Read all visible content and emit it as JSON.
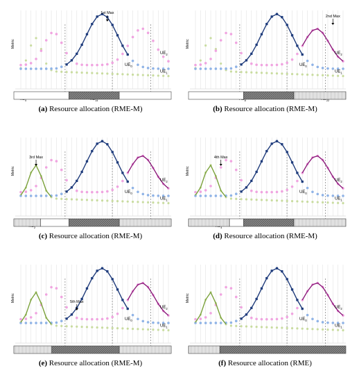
{
  "metric_label": "Metric",
  "colors": {
    "ue0": "#1f3b7a",
    "ue0_faint": "#8fb3e6",
    "ue1": "#c9dca0",
    "ue1_strong": "#7aa13a",
    "ue2": "#8b1a7a",
    "ue2_faint": "#f0a4e0",
    "bar_gray": "#7a7a7a",
    "bar_light": "#c8c8c8"
  },
  "panels": [
    {
      "caption_letter": "(a)",
      "caption_text": " Resource allocation (RME-M)",
      "annotation": "1st Max",
      "labels": {
        "ue2": "UE",
        "ue2_sub": "2",
        "ue0": "UE",
        "ue0_sub": "0",
        "ue1": "UE",
        "ue1_sub": "1"
      },
      "rb_labels": [
        {
          "text": "RB",
          "sub": "0"
        },
        {
          "text": "RB",
          "sub": "14"
        }
      ],
      "bar_segments": [
        {
          "from": 0.0,
          "to": 0.35,
          "fill": "white"
        },
        {
          "from": 0.35,
          "to": 0.67,
          "fill": "gray"
        },
        {
          "from": 0.67,
          "to": 1.0,
          "fill": "white"
        }
      ]
    },
    {
      "caption_letter": "(b)",
      "caption_text": " Resource allocation (RME-M)",
      "annotation": "2nd Max",
      "labels": {
        "ue2": "UE",
        "ue2_sub": "2",
        "ue0": "UE",
        "ue0_sub": "0",
        "ue1": "UE",
        "ue1_sub": "1"
      },
      "rb_labels": [
        {
          "text": "RB",
          "sub": "8"
        },
        {
          "text": "RB",
          "sub": "22"
        }
      ],
      "bar_segments": [
        {
          "from": 0.0,
          "to": 0.35,
          "fill": "white"
        },
        {
          "from": 0.35,
          "to": 0.67,
          "fill": "gray"
        },
        {
          "from": 0.67,
          "to": 1.0,
          "fill": "light"
        }
      ]
    },
    {
      "caption_letter": "(c)",
      "caption_text": " Resource allocation (RME-M)",
      "annotation": "3rd Max",
      "labels": {
        "ue2": "UE",
        "ue2_sub": "2",
        "ue0": "UE",
        "ue0_sub": "0",
        "ue1": "UE",
        "ue1_sub": "1"
      },
      "rb_labels": [
        {
          "text": "RB",
          "sub": "2"
        }
      ],
      "bar_segments": [
        {
          "from": 0.0,
          "to": 0.17,
          "fill": "light"
        },
        {
          "from": 0.17,
          "to": 0.35,
          "fill": "white"
        },
        {
          "from": 0.35,
          "to": 0.67,
          "fill": "gray"
        },
        {
          "from": 0.67,
          "to": 1.0,
          "fill": "light"
        }
      ]
    },
    {
      "caption_letter": "(d)",
      "caption_text": " Resource allocation (RME-M)",
      "annotation": "4th Max",
      "labels": {
        "ue2": "UE",
        "ue2_sub": "2",
        "ue0": "UE",
        "ue0_sub": "0",
        "ue1": "UE",
        "ue1_sub": "1"
      },
      "rb_labels": [
        {
          "text": "RB",
          "sub": "4"
        }
      ],
      "bar_segments": [
        {
          "from": 0.0,
          "to": 0.26,
          "fill": "light"
        },
        {
          "from": 0.26,
          "to": 0.35,
          "fill": "white"
        },
        {
          "from": 0.35,
          "to": 0.67,
          "fill": "gray"
        },
        {
          "from": 0.67,
          "to": 1.0,
          "fill": "light"
        }
      ]
    },
    {
      "caption_letter": "(e)",
      "caption_text": " Resource allocation (RME-M)",
      "annotation": "5th Max",
      "labels": {
        "ue2": "UE",
        "ue2_sub": "2",
        "ue0": "UE",
        "ue0_sub": "0",
        "ue1": "UE",
        "ue1_sub": "1"
      },
      "rb_labels": [],
      "bar_segments": [
        {
          "from": 0.0,
          "to": 0.24,
          "fill": "light"
        },
        {
          "from": 0.24,
          "to": 0.67,
          "fill": "gray"
        },
        {
          "from": 0.67,
          "to": 1.0,
          "fill": "light"
        }
      ]
    },
    {
      "caption_letter": "(f)",
      "caption_text": " Resource allocation (RME)",
      "annotation": "",
      "labels": {
        "ue2": "UE",
        "ue2_sub": "2",
        "ue0": "UE",
        "ue0_sub": "0",
        "ue1": "UE",
        "ue1_sub": "1"
      },
      "rb_labels": [],
      "bar_segments": [
        {
          "from": 0.0,
          "to": 0.2,
          "fill": "light"
        },
        {
          "from": 0.2,
          "to": 1.0,
          "fill": "gray"
        }
      ]
    }
  ]
}
